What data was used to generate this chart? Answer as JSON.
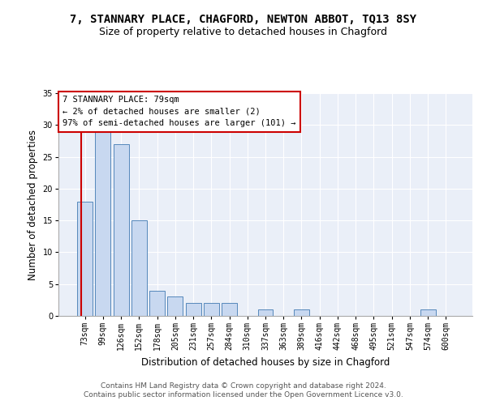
{
  "title": "7, STANNARY PLACE, CHAGFORD, NEWTON ABBOT, TQ13 8SY",
  "subtitle": "Size of property relative to detached houses in Chagford",
  "xlabel": "Distribution of detached houses by size in Chagford",
  "ylabel": "Number of detached properties",
  "categories": [
    "73sqm",
    "99sqm",
    "126sqm",
    "152sqm",
    "178sqm",
    "205sqm",
    "231sqm",
    "257sqm",
    "284sqm",
    "310sqm",
    "337sqm",
    "363sqm",
    "389sqm",
    "416sqm",
    "442sqm",
    "468sqm",
    "495sqm",
    "521sqm",
    "547sqm",
    "574sqm",
    "600sqm"
  ],
  "values": [
    18,
    29,
    27,
    15,
    4,
    3,
    2,
    2,
    2,
    0,
    1,
    0,
    1,
    0,
    0,
    0,
    0,
    0,
    0,
    1,
    0
  ],
  "bar_color": "#c8d8f0",
  "bar_edge_color": "#5588bb",
  "subject_line_color": "#cc0000",
  "annotation_box_text": "7 STANNARY PLACE: 79sqm\n← 2% of detached houses are smaller (2)\n97% of semi-detached houses are larger (101) →",
  "ylim": [
    0,
    35
  ],
  "yticks": [
    0,
    5,
    10,
    15,
    20,
    25,
    30,
    35
  ],
  "bg_color": "#eaeff8",
  "grid_color": "#ffffff",
  "footer_text": "Contains HM Land Registry data © Crown copyright and database right 2024.\nContains public sector information licensed under the Open Government Licence v3.0.",
  "title_fontsize": 10,
  "subtitle_fontsize": 9,
  "xlabel_fontsize": 8.5,
  "ylabel_fontsize": 8.5,
  "tick_fontsize": 7,
  "annotation_fontsize": 7.5,
  "footer_fontsize": 6.5
}
